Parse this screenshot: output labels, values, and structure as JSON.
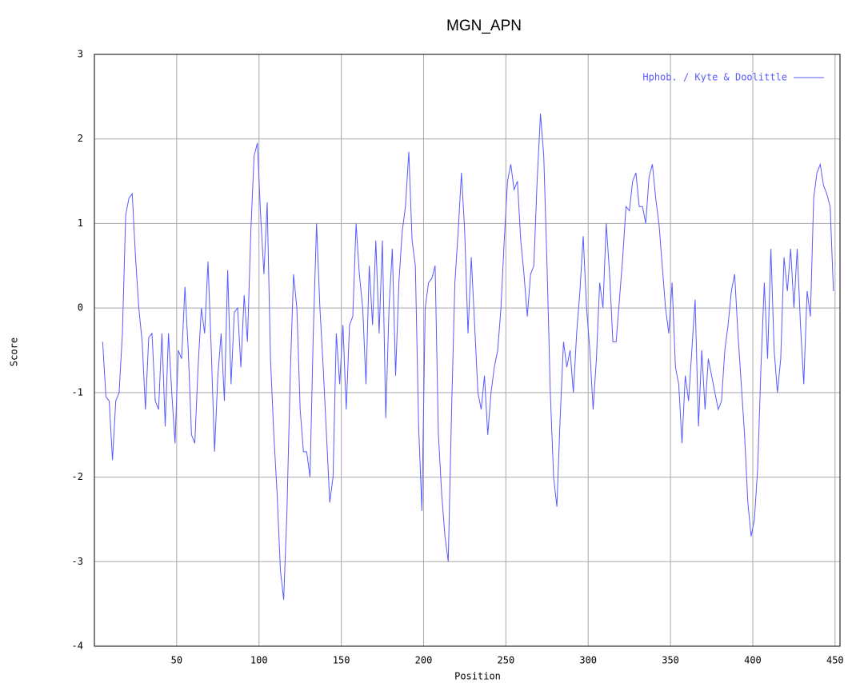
{
  "chart_data": {
    "type": "line",
    "title": "MGN_APN",
    "x_label": "Position",
    "y_label": "Score",
    "xlim": [
      0,
      453
    ],
    "ylim": [
      -4,
      3
    ],
    "xticks": [
      50,
      100,
      150,
      200,
      250,
      300,
      350,
      400,
      450
    ],
    "yticks": [
      -4,
      -3,
      -2,
      -1,
      0,
      1,
      2,
      3
    ],
    "grid": true,
    "legend": "top-right",
    "x": [
      5,
      7,
      9,
      11,
      13,
      15,
      17,
      19,
      21,
      23,
      25,
      27,
      29,
      31,
      33,
      35,
      37,
      39,
      41,
      43,
      45,
      47,
      49,
      51,
      53,
      55,
      57,
      59,
      61,
      63,
      65,
      67,
      69,
      71,
      73,
      75,
      77,
      79,
      81,
      83,
      85,
      87,
      89,
      91,
      93,
      95,
      97,
      99,
      101,
      103,
      105,
      107,
      109,
      111,
      113,
      115,
      117,
      119,
      121,
      123,
      125,
      127,
      129,
      131,
      133,
      135,
      137,
      139,
      141,
      143,
      145,
      147,
      149,
      151,
      153,
      155,
      157,
      159,
      161,
      163,
      165,
      167,
      169,
      171,
      173,
      175,
      177,
      179,
      181,
      183,
      185,
      187,
      189,
      191,
      193,
      195,
      197,
      199,
      201,
      203,
      205,
      207,
      209,
      211,
      213,
      215,
      217,
      219,
      221,
      223,
      225,
      227,
      229,
      231,
      233,
      235,
      237,
      239,
      241,
      243,
      245,
      247,
      249,
      251,
      253,
      255,
      257,
      259,
      261,
      263,
      265,
      267,
      269,
      271,
      273,
      275,
      277,
      279,
      281,
      283,
      285,
      287,
      289,
      291,
      293,
      295,
      297,
      299,
      301,
      303,
      305,
      307,
      309,
      311,
      313,
      315,
      317,
      319,
      321,
      323,
      325,
      327,
      329,
      331,
      333,
      335,
      337,
      339,
      341,
      343,
      345,
      347,
      349,
      351,
      353,
      355,
      357,
      359,
      361,
      363,
      365,
      367,
      369,
      371,
      373,
      375,
      377,
      379,
      381,
      383,
      385,
      387,
      389,
      391,
      393,
      395,
      397,
      399,
      401,
      403,
      405,
      407,
      409,
      411,
      413,
      415,
      417,
      419,
      421,
      423,
      425,
      427,
      429,
      431,
      433,
      435,
      437,
      439,
      441,
      443,
      445,
      447,
      449
    ],
    "series": [
      {
        "name": "Hphob. / Kyte & Doolittle",
        "color": "#5a5aff",
        "values": [
          -0.4,
          -1.05,
          -1.1,
          -1.8,
          -1.1,
          -1.0,
          -0.3,
          1.1,
          1.3,
          1.35,
          0.6,
          0.0,
          -0.4,
          -1.2,
          -0.35,
          -0.3,
          -1.1,
          -1.2,
          -0.3,
          -1.4,
          -0.3,
          -1.0,
          -1.6,
          -0.5,
          -0.6,
          0.25,
          -0.5,
          -1.5,
          -1.6,
          -0.7,
          0.0,
          -0.3,
          0.55,
          -0.5,
          -1.7,
          -0.8,
          -0.3,
          -1.1,
          0.45,
          -0.9,
          -0.05,
          0.0,
          -0.7,
          0.15,
          -0.4,
          0.9,
          1.8,
          1.95,
          1.1,
          0.4,
          1.25,
          -0.6,
          -1.5,
          -2.2,
          -3.1,
          -3.45,
          -2.4,
          -0.8,
          0.4,
          0.0,
          -1.2,
          -1.7,
          -1.7,
          -2.0,
          -0.3,
          1.0,
          0.0,
          -0.7,
          -1.5,
          -2.3,
          -2.0,
          -0.3,
          -0.9,
          -0.2,
          -1.2,
          -0.2,
          -0.1,
          1.0,
          0.4,
          0.0,
          -0.9,
          0.5,
          -0.2,
          0.8,
          -0.3,
          0.8,
          -1.3,
          0.0,
          0.7,
          -0.8,
          0.3,
          0.9,
          1.2,
          1.85,
          0.8,
          0.5,
          -1.4,
          -2.4,
          0.0,
          0.3,
          0.35,
          0.5,
          -1.5,
          -2.2,
          -2.7,
          -3.0,
          -1.2,
          0.3,
          0.9,
          1.6,
          0.9,
          -0.3,
          0.6,
          -0.2,
          -1.0,
          -1.2,
          -0.8,
          -1.5,
          -1.0,
          -0.7,
          -0.5,
          0.0,
          0.8,
          1.5,
          1.7,
          1.4,
          1.5,
          0.8,
          0.4,
          -0.1,
          0.4,
          0.5,
          1.5,
          2.3,
          1.8,
          0.5,
          -1.0,
          -2.0,
          -2.35,
          -1.3,
          -0.4,
          -0.7,
          -0.5,
          -1.0,
          -0.3,
          0.2,
          0.85,
          0.0,
          -0.5,
          -1.2,
          -0.6,
          0.3,
          0.0,
          1.0,
          0.4,
          -0.4,
          -0.4,
          0.1,
          0.6,
          1.2,
          1.15,
          1.5,
          1.6,
          1.2,
          1.2,
          1.0,
          1.55,
          1.7,
          1.3,
          1.0,
          0.5,
          0.0,
          -0.3,
          0.3,
          -0.7,
          -0.9,
          -1.6,
          -0.8,
          -1.1,
          -0.5,
          0.1,
          -1.4,
          -0.5,
          -1.2,
          -0.6,
          -0.8,
          -1.0,
          -1.2,
          -1.1,
          -0.5,
          -0.2,
          0.2,
          0.4,
          -0.3,
          -0.9,
          -1.5,
          -2.3,
          -2.7,
          -2.5,
          -1.9,
          -0.7,
          0.3,
          -0.6,
          0.7,
          -0.5,
          -1.0,
          -0.6,
          0.6,
          0.2,
          0.7,
          0.0,
          0.7,
          -0.2,
          -0.9,
          0.2,
          -0.1,
          1.3,
          1.6,
          1.7,
          1.45,
          1.35,
          1.2,
          0.2
        ]
      }
    ]
  }
}
